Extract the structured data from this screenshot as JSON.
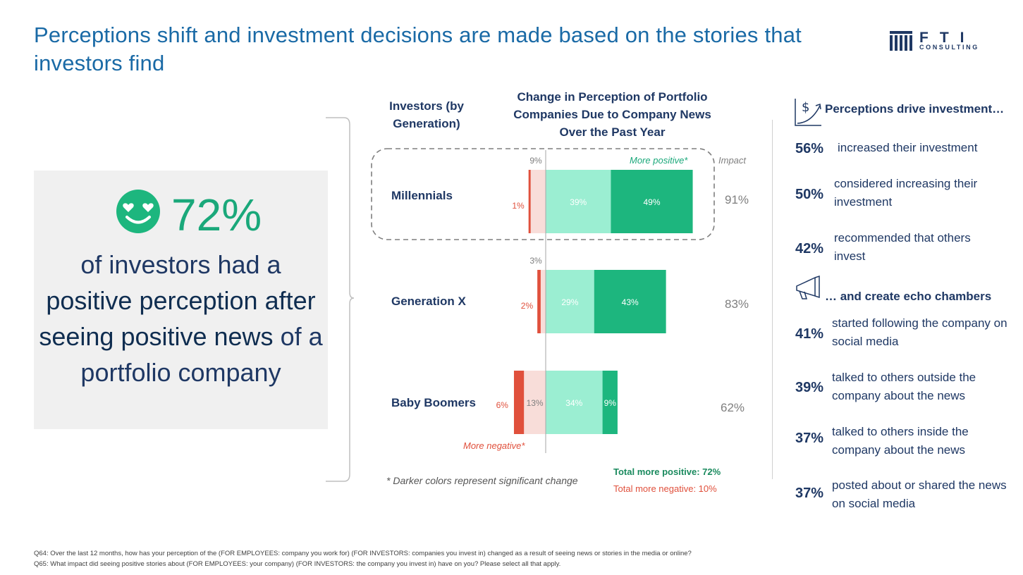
{
  "title": "Perceptions shift and investment decisions are made based on the stories that investors find",
  "logo": {
    "name": "FTI",
    "sub": "CONSULTING",
    "tm": "™"
  },
  "colors": {
    "dark_green": "#1db67e",
    "light_green": "#9beed2",
    "dark_red": "#e0503c",
    "light_red": "#f8ddd9",
    "navy": "#1f3864",
    "blue_title": "#1a6aa6"
  },
  "highlight": {
    "icon": "heart-eyes-smiley-icon",
    "percent": "72%",
    "text_pre": "of investors had a",
    "text_bold": "positive perception after seeing positive news",
    "text_post": "of a portfolio company"
  },
  "chart_header": {
    "investors": "Investors (by Generation)",
    "change": "Change in Perception of Portfolio Companies Due to Company News Over the Past Year",
    "more_positive": "More positive*",
    "more_negative": "More negative*",
    "impact": "Impact"
  },
  "chart_data": {
    "type": "bar",
    "orientation": "horizontal-diverging",
    "categories": [
      "Millennials",
      "Generation X",
      "Baby Boomers"
    ],
    "series": [
      {
        "name": "More negative (significant)",
        "values": [
          1,
          2,
          6
        ],
        "labels": [
          "1%",
          "2%",
          "6%"
        ]
      },
      {
        "name": "More negative",
        "values": [
          9,
          3,
          13
        ],
        "labels": [
          "9%",
          "3%",
          "13%"
        ]
      },
      {
        "name": "More positive",
        "values": [
          39,
          29,
          34
        ],
        "labels": [
          "39%",
          "29%",
          "34%"
        ]
      },
      {
        "name": "More positive (significant)",
        "values": [
          49,
          43,
          9
        ],
        "labels": [
          "49%",
          "43%",
          "9%"
        ]
      }
    ],
    "impact": [
      "91%",
      "83%",
      "62%"
    ],
    "highlighted_category": "Millennials"
  },
  "footnote_chart": "* Darker colors represent significant change",
  "totals": {
    "positive": "Total more positive: 72%",
    "negative": "Total more negative: 10%"
  },
  "side": {
    "drive_header": "Perceptions drive investment…",
    "drive_icon": "dollar-growth-icon",
    "drive_items": [
      {
        "pct": "56%",
        "text": "increased their investment"
      },
      {
        "pct": "50%",
        "text": "considered increasing their investment"
      },
      {
        "pct": "42%",
        "text": "recommended that others invest"
      }
    ],
    "echo_header": "… and create echo chambers",
    "echo_icon": "megaphone-icon",
    "echo_items": [
      {
        "pct": "41%",
        "text": "started following the company on social media"
      },
      {
        "pct": "39%",
        "text": "talked to others outside the company about the news"
      },
      {
        "pct": "37%",
        "text": "talked to others inside the company about the news"
      },
      {
        "pct": "37%",
        "text": "posted about or shared the news on social media"
      }
    ]
  },
  "footnotes": [
    "Q64: Over the last 12 months, how has your perception of the (FOR EMPLOYEES: company you work for) (FOR INVESTORS: companies you invest in) changed as a result of seeing news or stories in the media or online?",
    "Q65: What impact did seeing positive stories about (FOR EMPLOYEES: your company) (FOR INVESTORS: the company you invest in) have on you? Please select all that apply."
  ]
}
